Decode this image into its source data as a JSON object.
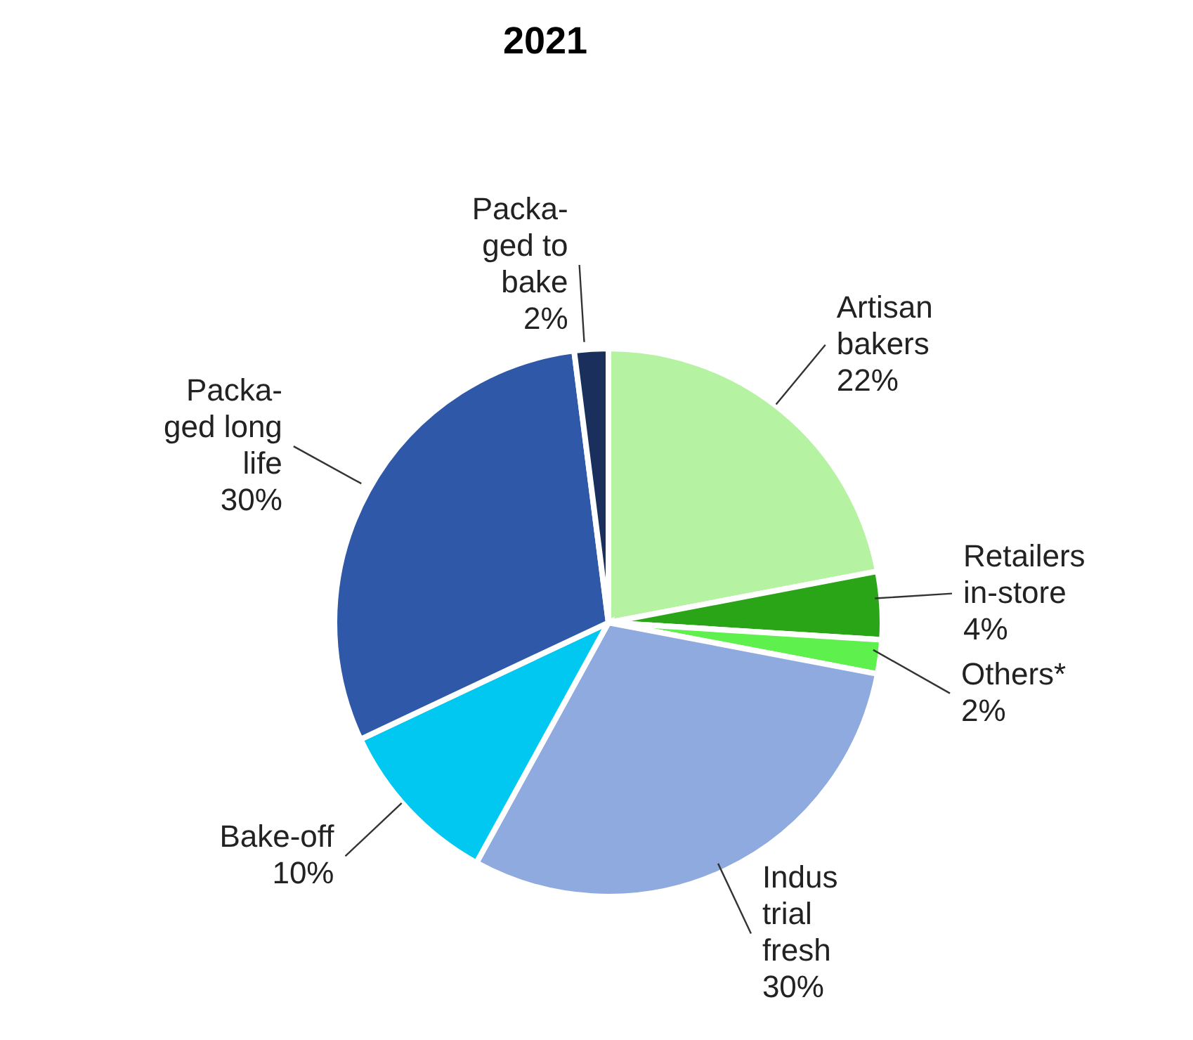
{
  "chart_data": {
    "type": "pie",
    "title": "2021",
    "categories": [
      "Artisan\nbakers",
      "Retailers\nin-store",
      "Others*",
      "Indus\ntrial\nfresh",
      "Bake-off",
      "Packa-\nged long\nlife",
      "Packa-\nged to\nbake"
    ],
    "values": [
      22,
      4,
      2,
      30,
      10,
      30,
      2
    ],
    "value_labels": [
      "22%",
      "4%",
      "2%",
      "30%",
      "10%",
      "30%",
      "2%"
    ],
    "colors": [
      "#b5f2a2",
      "#2aa517",
      "#5ef04c",
      "#8eaadf",
      "#00c8f0",
      "#2f59a8",
      "#1b2f5c"
    ]
  }
}
